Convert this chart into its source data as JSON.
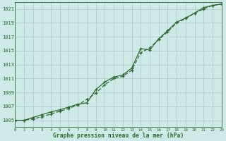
{
  "title": "Graphe pression niveau de la mer (hPa)",
  "bg_color": "#ceeae8",
  "grid_color": "#adc8c6",
  "line_color": "#2d6a2d",
  "x_min": 0,
  "x_max": 23,
  "y_min": 1004.0,
  "y_max": 1022.0,
  "y_ticks": [
    1005,
    1007,
    1009,
    1011,
    1013,
    1015,
    1017,
    1019,
    1021
  ],
  "x_ticks": [
    0,
    1,
    2,
    3,
    4,
    5,
    6,
    7,
    8,
    9,
    10,
    11,
    12,
    13,
    14,
    15,
    16,
    17,
    18,
    19,
    20,
    21,
    22,
    23
  ],
  "series1_x": [
    0,
    1,
    2,
    3,
    4,
    5,
    6,
    7,
    8,
    9,
    10,
    11,
    12,
    13,
    14,
    15,
    16,
    17,
    18,
    19,
    20,
    21,
    22,
    23
  ],
  "series1_y": [
    1005.0,
    1005.0,
    1005.4,
    1005.8,
    1006.2,
    1006.5,
    1006.9,
    1007.3,
    1007.5,
    1009.4,
    1010.5,
    1011.2,
    1011.5,
    1012.5,
    1015.3,
    1015.1,
    1016.7,
    1017.9,
    1019.1,
    1019.7,
    1020.4,
    1021.2,
    1021.5,
    1021.7
  ],
  "series2_x": [
    0,
    1,
    2,
    3,
    4,
    5,
    6,
    7,
    8,
    9,
    10,
    11,
    12,
    13,
    14,
    15,
    16,
    17,
    18,
    19,
    20,
    21,
    22,
    23
  ],
  "series2_y": [
    1005.0,
    1005.0,
    1005.2,
    1005.5,
    1005.9,
    1006.3,
    1006.7,
    1007.2,
    1008.0,
    1008.9,
    1010.1,
    1011.0,
    1011.3,
    1012.2,
    1014.7,
    1015.4,
    1016.6,
    1017.7,
    1019.0,
    1019.6,
    1020.4,
    1021.0,
    1021.5,
    1021.7
  ],
  "markersize": 3,
  "linewidth": 0.9
}
